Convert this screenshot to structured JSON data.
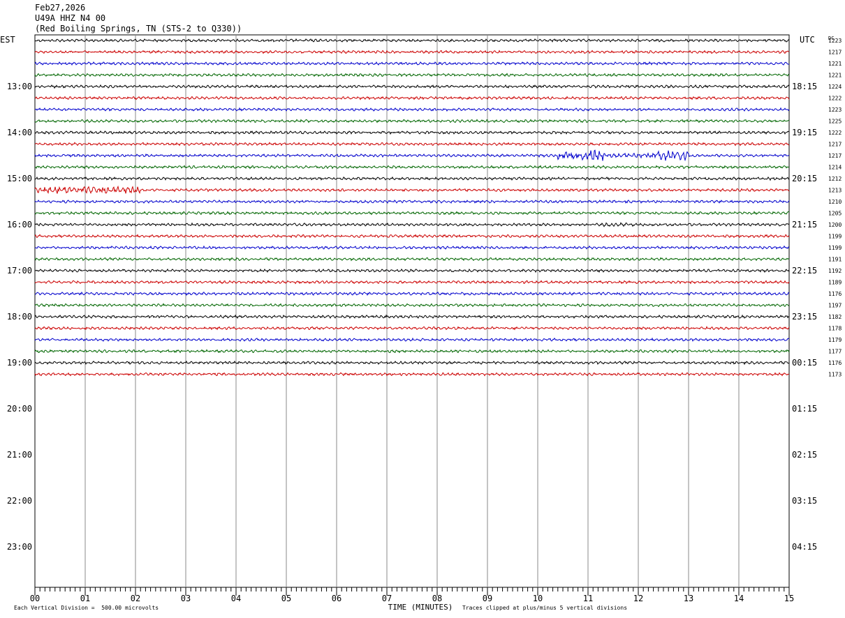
{
  "header": {
    "date": "Feb27,2026",
    "station": "U49A HHZ N4 00",
    "location": "(Red Boiling Springs, TN (STS-2 to Q330))"
  },
  "chart_data": {
    "type": "line",
    "left_tz": "EST",
    "right_tz": "UTC",
    "dc_label": "DC",
    "xlabel": "TIME (MINUTES)",
    "xlim": [
      0,
      15
    ],
    "x_ticks": [
      "00",
      "01",
      "02",
      "03",
      "04",
      "05",
      "06",
      "07",
      "08",
      "09",
      "10",
      "11",
      "12",
      "13",
      "14",
      "15"
    ],
    "rows_per_hour": 4,
    "hours_shown": 12,
    "left_hour_labels": [
      "13:00",
      "14:00",
      "15:00",
      "16:00",
      "17:00",
      "18:00",
      "19:00",
      "20:00",
      "21:00",
      "22:00",
      "23:00"
    ],
    "right_hour_labels": [
      "18:15",
      "19:15",
      "20:15",
      "21:15",
      "22:15",
      "23:15",
      "00:15",
      "01:15",
      "02:15",
      "03:15",
      "04:15"
    ],
    "trace_colors": [
      "#000000",
      "#cc0000",
      "#0000cc",
      "#006600"
    ],
    "dc_values": [
      "1223",
      "1217",
      "1221",
      "1221",
      "1224",
      "1222",
      "1223",
      "1225",
      "1222",
      "1217",
      "1217",
      "1214",
      "1212",
      "1213",
      "1210",
      "1205",
      "1200",
      "1199",
      "1199",
      "1191",
      "1192",
      "1189",
      "1176",
      "1197",
      "1182",
      "1178",
      "1179",
      "1177",
      "1176",
      "1173"
    ],
    "events": [
      {
        "row": 4,
        "start_min": 0.2,
        "end_min": 0.6,
        "amp": 1.8
      },
      {
        "row": 5,
        "start_min": 3.3,
        "end_min": 3.6,
        "amp": 1.3
      },
      {
        "row": 8,
        "start_min": 0.2,
        "end_min": 0.9,
        "amp": 1.8
      },
      {
        "row": 10,
        "start_min": 10.4,
        "end_min": 11.0,
        "amp": 5.0
      },
      {
        "row": 10,
        "start_min": 11.0,
        "end_min": 11.3,
        "amp": 7.0
      },
      {
        "row": 10,
        "start_min": 11.3,
        "end_min": 12.3,
        "amp": 3.0
      },
      {
        "row": 10,
        "start_min": 12.3,
        "end_min": 13.0,
        "amp": 6.0
      },
      {
        "row": 12,
        "start_min": 6.0,
        "end_min": 6.8,
        "amp": 1.8
      },
      {
        "row": 12,
        "start_min": 14.5,
        "end_min": 15.0,
        "amp": 1.8
      },
      {
        "row": 13,
        "start_min": 0.0,
        "end_min": 2.1,
        "amp": 4.0
      },
      {
        "row": 16,
        "start_min": 11.3,
        "end_min": 11.9,
        "amp": 2.2
      },
      {
        "row": 20,
        "start_min": 10.3,
        "end_min": 10.6,
        "amp": 1.5
      },
      {
        "row": 23,
        "start_min": 0.4,
        "end_min": 1.0,
        "amp": 2.2
      },
      {
        "row": 24,
        "start_min": 6.3,
        "end_min": 7.1,
        "amp": 1.8
      }
    ]
  },
  "footer": {
    "division_note": "Each Vertical Division =  500.00 microvolts",
    "clip_note": "Traces clipped at plus/minus 5 vertical divisions"
  }
}
